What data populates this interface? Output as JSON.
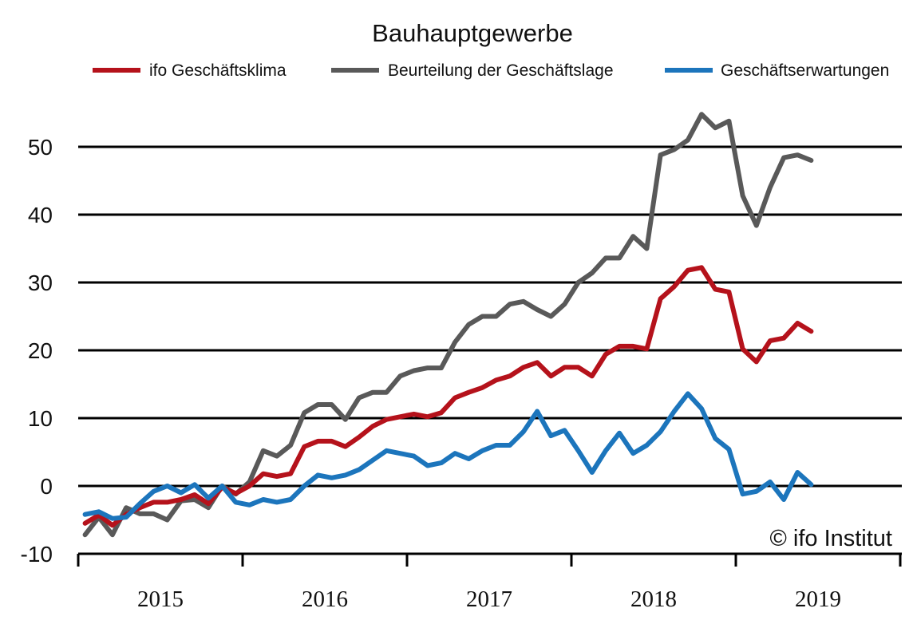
{
  "chart_data": {
    "type": "line",
    "title": "Bauhauptgewerbe",
    "copyright": "© ifo Institut",
    "ylim": [
      -10,
      55
    ],
    "y_ticks": [
      "50",
      "40",
      "30",
      "20",
      "10",
      "0",
      "-10"
    ],
    "y_tick_values": [
      50,
      40,
      30,
      20,
      10,
      0,
      -10
    ],
    "x_labels": [
      "2015",
      "2016",
      "2017",
      "2018",
      "2019"
    ],
    "x_start": "2015-01",
    "x_end": "2019-12",
    "grid": "horizontal",
    "legend_placement": "top",
    "series": [
      {
        "name": "ifo Geschäftsklima",
        "color": "#b5121b",
        "values": [
          -5.5,
          -4.3,
          -5.8,
          -4.2,
          -3.2,
          -2.4,
          -2.4,
          -2.0,
          -1.3,
          -2.6,
          -0.2,
          -1.1,
          0.0,
          1.8,
          1.4,
          1.8,
          5.8,
          6.6,
          6.6,
          5.8,
          7.2,
          8.8,
          9.8,
          10.2,
          10.6,
          10.2,
          10.8,
          13.0,
          13.8,
          14.5,
          15.6,
          16.2,
          17.5,
          18.2,
          16.2,
          17.5,
          17.5,
          16.2,
          19.4,
          20.6,
          20.6,
          20.2,
          27.6,
          29.4,
          31.8,
          32.2,
          29.0,
          28.6,
          20.2,
          18.3,
          21.4,
          21.8,
          24.0,
          22.8
        ]
      },
      {
        "name": "Beurteilung der Geschäftslage",
        "color": "#595959",
        "values": [
          -7.2,
          -4.6,
          -7.2,
          -3.2,
          -4.1,
          -4.1,
          -5.0,
          -2.2,
          -2.0,
          -3.2,
          0.0,
          -1.2,
          0.6,
          5.2,
          4.4,
          6.0,
          10.8,
          12.0,
          12.0,
          9.8,
          13.0,
          13.8,
          13.8,
          16.2,
          17.0,
          17.4,
          17.4,
          21.2,
          23.8,
          25.0,
          25.0,
          26.8,
          27.2,
          26.0,
          25.0,
          26.8,
          30.0,
          31.4,
          33.6,
          33.6,
          36.8,
          35.0,
          48.8,
          49.6,
          51.0,
          54.8,
          52.8,
          53.8,
          42.8,
          38.4,
          44.0,
          48.4,
          48.8,
          48.0
        ]
      },
      {
        "name": "Geschäftserwartungen",
        "color": "#1c75bc",
        "values": [
          -4.2,
          -3.8,
          -4.8,
          -4.6,
          -2.6,
          -0.8,
          0.0,
          -1.0,
          0.2,
          -1.8,
          0.0,
          -2.4,
          -2.8,
          -2.0,
          -2.4,
          -2.0,
          0.0,
          1.6,
          1.2,
          1.6,
          2.4,
          3.8,
          5.2,
          4.8,
          4.4,
          3.0,
          3.4,
          4.8,
          4.0,
          5.2,
          6.0,
          6.0,
          8.0,
          11.0,
          7.4,
          8.2,
          5.2,
          2.0,
          5.2,
          7.8,
          4.8,
          6.0,
          8.0,
          11.0,
          13.6,
          11.4,
          7.0,
          5.4,
          -1.2,
          -0.8,
          0.6,
          -2.0,
          2.0,
          0.2
        ]
      }
    ]
  }
}
